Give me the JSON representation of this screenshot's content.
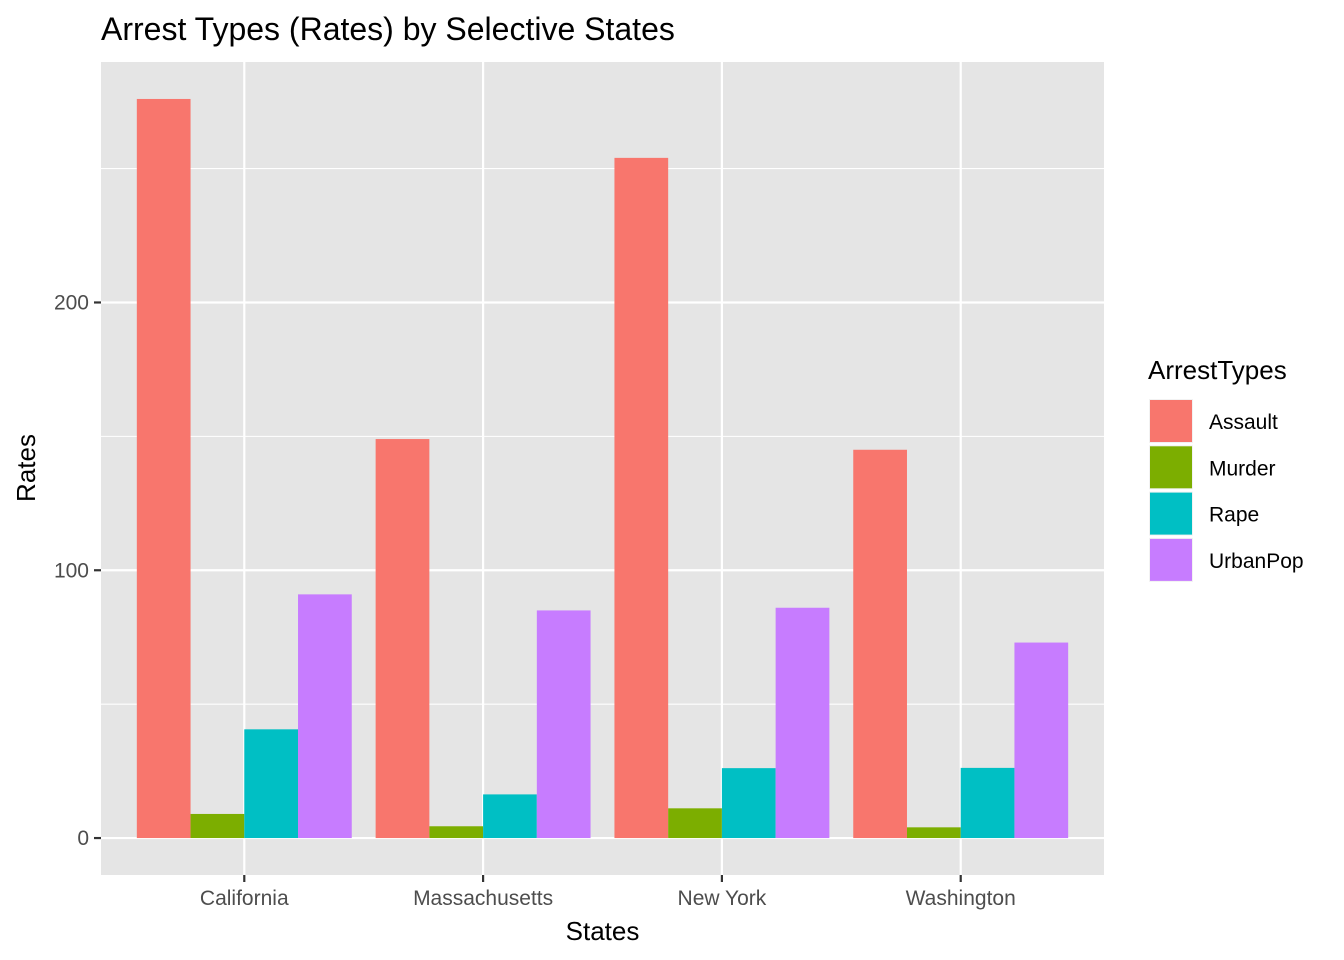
{
  "chart_data": {
    "type": "bar",
    "title": "Arrest Types (Rates) by Selective States",
    "xlabel": "States",
    "ylabel": "Rates",
    "categories": [
      "California",
      "Massachusetts",
      "New York",
      "Washington"
    ],
    "series": [
      {
        "name": "Assault",
        "color": "#F8766D",
        "values": [
          276,
          149,
          254,
          145
        ]
      },
      {
        "name": "Murder",
        "color": "#7CAE00",
        "values": [
          9.0,
          4.4,
          11.1,
          4.0
        ]
      },
      {
        "name": "Rape",
        "color": "#00BFC4",
        "values": [
          40.6,
          16.3,
          26.1,
          26.2
        ]
      },
      {
        "name": "UrbanPop",
        "color": "#C77CFF",
        "values": [
          91,
          85,
          86,
          73
        ]
      }
    ],
    "y_ticks": [
      0,
      100,
      200
    ],
    "ylim": [
      -13.8,
      289.8
    ],
    "legend": {
      "title": "ArrestTypes",
      "position": "right"
    },
    "grid": true,
    "panel_background": "#E5E5E5",
    "grid_color": "#FFFFFF"
  }
}
